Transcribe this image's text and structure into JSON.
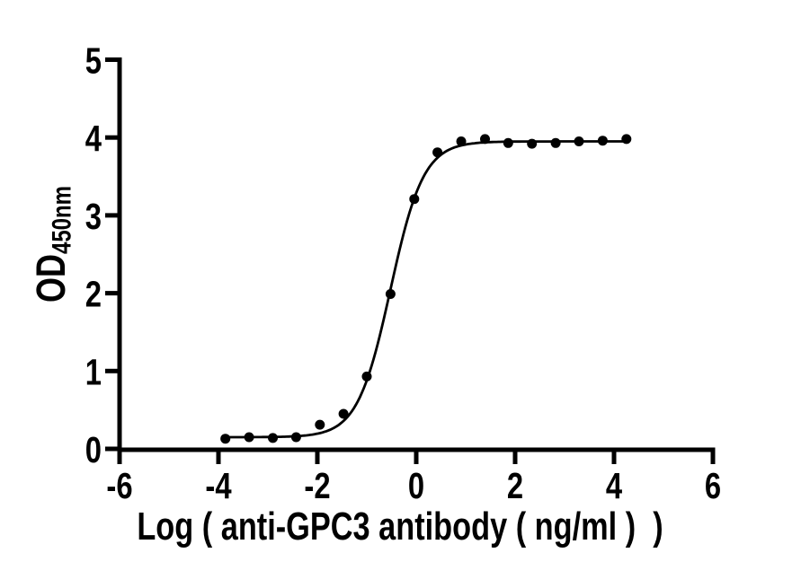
{
  "figure": {
    "background": "#ffffff",
    "ink_color": "#000000"
  },
  "chart_data": {
    "type": "scatter",
    "subtype": "sigmoidal-dose-response-elisa",
    "title": "",
    "xlabel": "Log ( anti-GPC3 antibody ( ng/ml )  )",
    "ylabel_main": "OD",
    "ylabel_sub": "450nm",
    "xlim": [
      -6,
      6
    ],
    "ylim": [
      0,
      5
    ],
    "x_ticks": [
      -6,
      -4,
      -2,
      0,
      2,
      4,
      6
    ],
    "y_ticks": [
      0,
      1,
      2,
      3,
      4,
      5
    ],
    "grid": false,
    "legend_position": "none",
    "marker_color": "#000000",
    "line_color": "#000000",
    "points": {
      "x": [
        -3.86,
        -3.38,
        -2.9,
        -2.43,
        -1.95,
        -1.47,
        -1.0,
        -0.52,
        -0.04,
        0.43,
        0.91,
        1.39,
        1.86,
        2.34,
        2.82,
        3.29,
        3.77,
        4.25
      ],
      "y": [
        0.13,
        0.15,
        0.14,
        0.15,
        0.31,
        0.45,
        0.93,
        1.99,
        3.21,
        3.81,
        3.95,
        3.98,
        3.93,
        3.92,
        3.93,
        3.95,
        3.96,
        3.98
      ]
    },
    "fit_curve": {
      "model": "4PL",
      "bottom": 0.15,
      "top": 3.95,
      "log_ec50": -0.52,
      "hill_slope": 1.3,
      "x_start": -3.86,
      "x_end": 4.25
    }
  }
}
